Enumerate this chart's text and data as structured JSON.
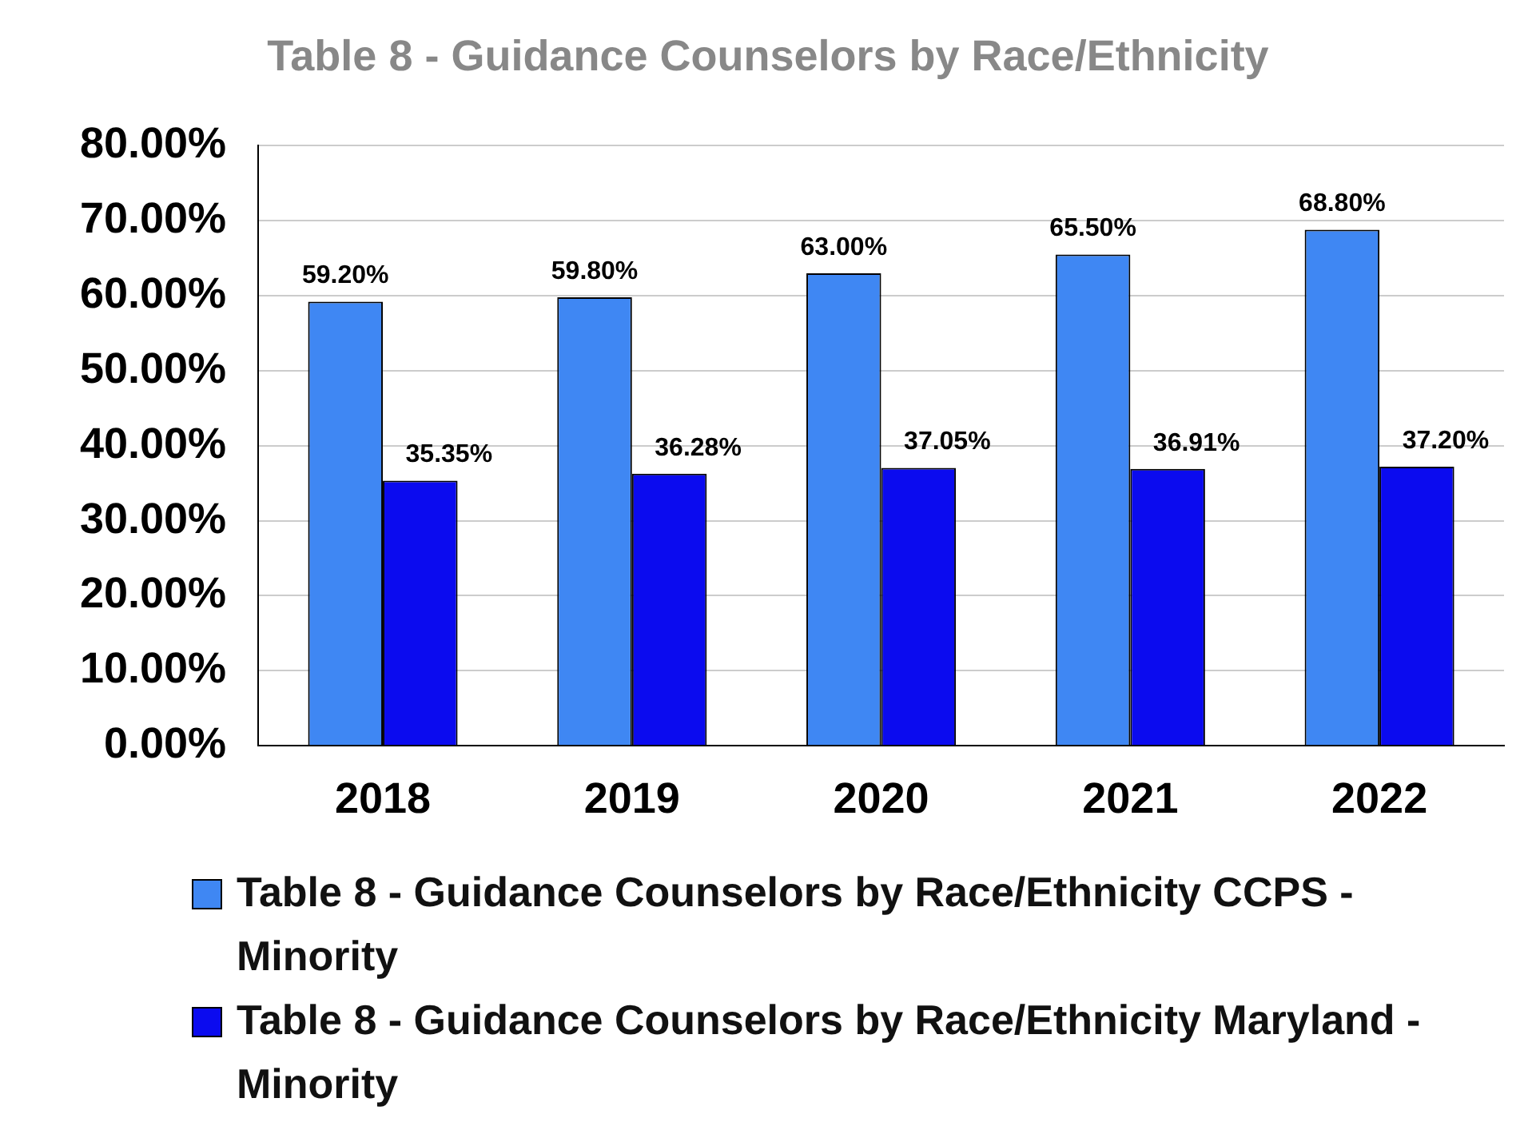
{
  "chart_data": {
    "type": "bar",
    "title": "Table 8 - Guidance Counselors by Race/Ethnicity",
    "categories": [
      "2018",
      "2019",
      "2020",
      "2021",
      "2022"
    ],
    "series": [
      {
        "name": "Table 8 - Guidance Counselors by Race/Ethnicity CCPS - Minority",
        "color": "#3f87f3",
        "values": [
          59.2,
          59.8,
          63.0,
          65.5,
          68.8
        ],
        "value_labels": [
          "59.20%",
          "59.80%",
          "63.00%",
          "65.50%",
          "68.80%"
        ]
      },
      {
        "name": "Table 8 - Guidance Counselors by Race/Ethnicity Maryland - Minority",
        "color": "#0b0bef",
        "values": [
          35.35,
          36.28,
          37.05,
          36.91,
          37.2
        ],
        "value_labels": [
          "35.35%",
          "36.28%",
          "37.05%",
          "36.91%",
          "37.20%"
        ]
      }
    ],
    "ylim": [
      0,
      80
    ],
    "yticks": [
      {
        "value": 0,
        "label": "0.00%"
      },
      {
        "value": 10,
        "label": "10.00%"
      },
      {
        "value": 20,
        "label": "20.00%"
      },
      {
        "value": 30,
        "label": "30.00%"
      },
      {
        "value": 40,
        "label": "40.00%"
      },
      {
        "value": 50,
        "label": "50.00%"
      },
      {
        "value": 60,
        "label": "60.00%"
      },
      {
        "value": 70,
        "label": "70.00%"
      },
      {
        "value": 80,
        "label": "80.00%"
      }
    ],
    "grid": "y",
    "legend": "bottom"
  }
}
